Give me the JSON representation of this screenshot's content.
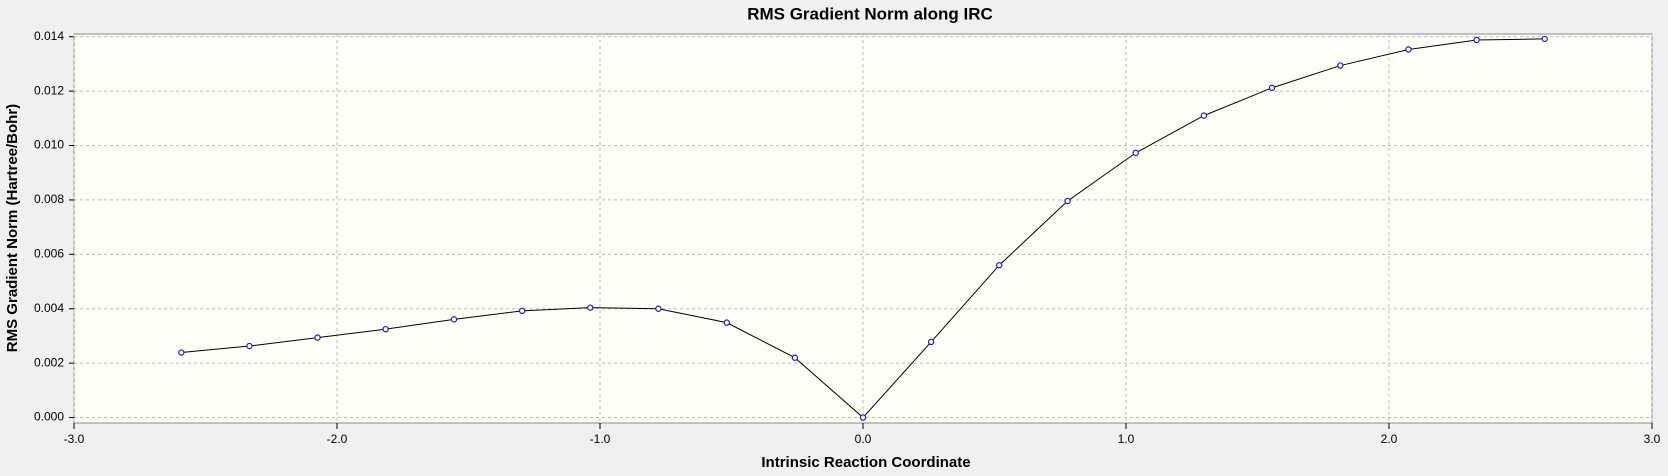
{
  "chart_data": {
    "type": "line",
    "title": "RMS Gradient Norm along IRC",
    "x_label": "Intrinsic Reaction Coordinate",
    "y_label": "RMS Gradient Norm (Hartree/Bohr)",
    "x": [
      -2.592,
      -2.333,
      -2.074,
      -1.815,
      -1.555,
      -1.296,
      -1.037,
      -0.778,
      -0.518,
      -0.259,
      0,
      0.259,
      0.518,
      0.778,
      1.037,
      1.296,
      1.555,
      1.815,
      2.074,
      2.333,
      2.592
    ],
    "series": [
      {
        "name": "RMS Gradient Norm",
        "color": "#000000",
        "marker_color": "#1a1acc",
        "values": [
          0.00239,
          0.00263,
          0.00294,
          0.00325,
          0.00361,
          0.00392,
          0.00404,
          0.004,
          0.00349,
          0.0022,
          0,
          0.00278,
          0.0056,
          0.00796,
          0.00973,
          0.0111,
          0.01212,
          0.01294,
          0.01353,
          0.01388,
          0.01392
        ]
      }
    ],
    "xlim": [
      -3.0,
      3.0
    ],
    "ylim": [
      -0.0002,
      0.0141
    ],
    "xticks": [
      {
        "value": -3,
        "label": "-3.0"
      },
      {
        "value": -2,
        "label": "-2.0"
      },
      {
        "value": -1,
        "label": "-1.0"
      },
      {
        "value": 0,
        "label": "0.0"
      },
      {
        "value": 1,
        "label": "1.0"
      },
      {
        "value": 2,
        "label": "2.0"
      },
      {
        "value": 3,
        "label": "3.0"
      }
    ],
    "yticks": [
      {
        "value": 0,
        "label": "0.000"
      },
      {
        "value": 0.002,
        "label": "0.002"
      },
      {
        "value": 0.004,
        "label": "0.004"
      },
      {
        "value": 0.006,
        "label": "0.006"
      },
      {
        "value": 0.008,
        "label": "0.008"
      },
      {
        "value": 0.01,
        "label": "0.010"
      },
      {
        "value": 0.012,
        "label": "0.012"
      },
      {
        "value": 0.014,
        "label": "0.014"
      }
    ],
    "grid": true
  }
}
